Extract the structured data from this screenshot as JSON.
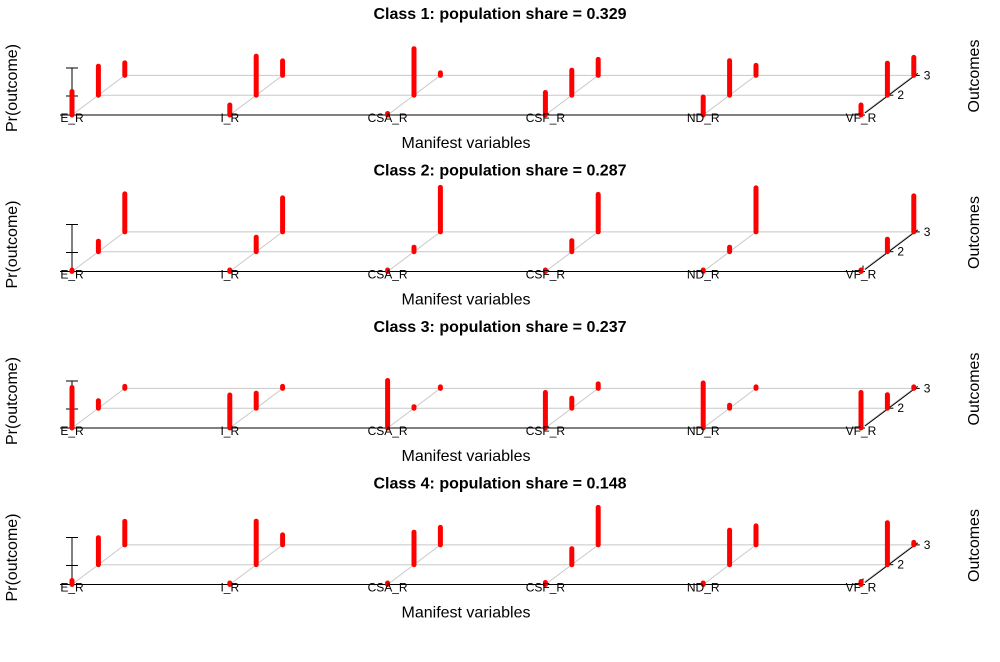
{
  "chart_data": [
    {
      "type": "bar",
      "title": "Class 1: population share = 0.329",
      "xlabel": "Manifest variables",
      "ylabel": "Pr(outcome)",
      "zlabel": "Outcomes",
      "categories": [
        "E_R",
        "I_R",
        "CSA_R",
        "CSF_R",
        "ND_R",
        "VF_R"
      ],
      "outcome_ticks": [
        "2",
        "3"
      ],
      "ylim": [
        0,
        1
      ],
      "series": [
        {
          "name": "1",
          "values": [
            0.47,
            0.2,
            0.02,
            0.45,
            0.36,
            0.2
          ]
        },
        {
          "name": "2",
          "values": [
            0.58,
            0.78,
            0.93,
            0.5,
            0.69,
            0.64
          ]
        },
        {
          "name": "3",
          "values": [
            0.25,
            0.29,
            0.05,
            0.32,
            0.2,
            0.36
          ]
        }
      ],
      "bar_color": "#ff0000"
    },
    {
      "type": "bar",
      "title": "Class 2: population share = 0.287",
      "xlabel": "Manifest variables",
      "ylabel": "Pr(outcome)",
      "zlabel": "Outcomes",
      "categories": [
        "E_R",
        "I_R",
        "CSA_R",
        "CSF_R",
        "ND_R",
        "VF_R"
      ],
      "outcome_ticks": [
        "2",
        "3"
      ],
      "ylim": [
        0,
        1
      ],
      "series": [
        {
          "name": "1",
          "values": [
            0.03,
            0.03,
            0.02,
            0.03,
            0.03,
            0.03
          ]
        },
        {
          "name": "2",
          "values": [
            0.21,
            0.29,
            0.09,
            0.22,
            0.09,
            0.25
          ]
        },
        {
          "name": "3",
          "values": [
            0.76,
            0.68,
            0.89,
            0.75,
            0.88,
            0.72
          ]
        }
      ],
      "bar_color": "#ff0000"
    },
    {
      "type": "bar",
      "title": "Class 3: population share = 0.237",
      "xlabel": "Manifest variables",
      "ylabel": "Pr(outcome)",
      "zlabel": "Outcomes",
      "categories": [
        "E_R",
        "I_R",
        "CSA_R",
        "CSF_R",
        "ND_R",
        "VF_R"
      ],
      "outcome_ticks": [
        "2",
        "3"
      ],
      "ylim": [
        0,
        1
      ],
      "series": [
        {
          "name": "1",
          "values": [
            0.81,
            0.66,
            0.95,
            0.71,
            0.9,
            0.71
          ]
        },
        {
          "name": "2",
          "values": [
            0.15,
            0.3,
            0.02,
            0.2,
            0.06,
            0.27
          ]
        },
        {
          "name": "3",
          "values": [
            0.04,
            0.04,
            0.03,
            0.09,
            0.02,
            0.02
          ]
        }
      ],
      "bar_color": "#ff0000"
    },
    {
      "type": "bar",
      "title": "Class 4: population share = 0.148",
      "xlabel": "Manifest variables",
      "ylabel": "Pr(outcome)",
      "zlabel": "Outcomes",
      "categories": [
        "E_R",
        "I_R",
        "CSA_R",
        "CSF_R",
        "ND_R",
        "VF_R"
      ],
      "outcome_ticks": [
        "2",
        "3"
      ],
      "ylim": [
        0,
        1
      ],
      "series": [
        {
          "name": "1",
          "values": [
            0.08,
            0.03,
            0.03,
            0.04,
            0.02,
            0.06
          ]
        },
        {
          "name": "2",
          "values": [
            0.54,
            0.87,
            0.65,
            0.32,
            0.69,
            0.84
          ]
        },
        {
          "name": "3",
          "values": [
            0.47,
            0.2,
            0.35,
            0.75,
            0.38,
            0.05
          ]
        }
      ],
      "bar_color": "#ff0000"
    }
  ]
}
